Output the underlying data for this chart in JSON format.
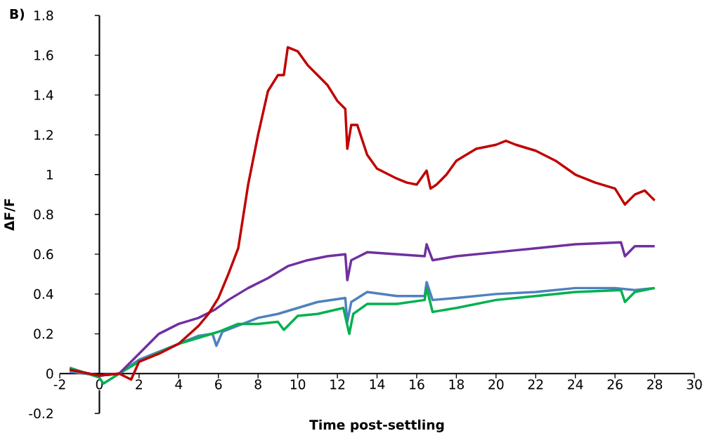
{
  "chart_data": {
    "type": "line",
    "xlabel": "Time post-settling",
    "ylabel": "ΔF/F",
    "annotations": [
      "B)"
    ],
    "xlim": [
      -2,
      30
    ],
    "xticks": [
      -2,
      0,
      2,
      4,
      6,
      8,
      10,
      12,
      14,
      16,
      18,
      20,
      22,
      24,
      26,
      28,
      30
    ],
    "ylim": [
      -0.2,
      1.8
    ],
    "yticks": [
      -0.2,
      0,
      0.2,
      0.4,
      0.6,
      0.8,
      1,
      1.2,
      1.4,
      1.6,
      1.8
    ],
    "series": [
      {
        "color": "#4f81bd",
        "x": [
          -1.5,
          0,
          1,
          2,
          4,
          5,
          5.7,
          5.9,
          6.2,
          8,
          9,
          10,
          11,
          12.4,
          12.5,
          12.7,
          13.5,
          15,
          16.4,
          16.5,
          16.8,
          18,
          20,
          22,
          24,
          26,
          27,
          28
        ],
        "values": [
          0.01,
          -0.01,
          0,
          0.07,
          0.15,
          0.19,
          0.2,
          0.14,
          0.21,
          0.28,
          0.3,
          0.33,
          0.36,
          0.38,
          0.26,
          0.36,
          0.41,
          0.39,
          0.39,
          0.46,
          0.37,
          0.38,
          0.4,
          0.41,
          0.43,
          0.43,
          0.42,
          0.43
        ]
      },
      {
        "color": "#00b050",
        "x": [
          -1.5,
          0,
          0.2,
          1,
          2,
          4,
          5,
          6,
          7,
          8,
          9,
          9.3,
          10,
          11,
          12.3,
          12.6,
          12.8,
          13.5,
          15,
          16.4,
          16.5,
          16.8,
          18,
          20,
          22,
          24,
          26.3,
          26.5,
          27,
          28
        ],
        "values": [
          0.03,
          -0.02,
          -0.05,
          0,
          0.06,
          0.15,
          0.18,
          0.21,
          0.25,
          0.25,
          0.26,
          0.22,
          0.29,
          0.3,
          0.33,
          0.2,
          0.3,
          0.35,
          0.35,
          0.37,
          0.43,
          0.31,
          0.33,
          0.37,
          0.39,
          0.41,
          0.42,
          0.36,
          0.41,
          0.43
        ]
      },
      {
        "color": "#7030a0",
        "x": [
          -1.5,
          0,
          1,
          2,
          3,
          4,
          5,
          5.8,
          6.5,
          7.5,
          8.5,
          9.5,
          10.5,
          11.5,
          12.4,
          12.5,
          12.7,
          13.5,
          15,
          16.4,
          16.5,
          16.8,
          18,
          20,
          22,
          24,
          26.3,
          26.5,
          27,
          28
        ],
        "values": [
          0.02,
          -0.01,
          0,
          0.1,
          0.2,
          0.25,
          0.28,
          0.32,
          0.37,
          0.43,
          0.48,
          0.54,
          0.57,
          0.59,
          0.6,
          0.47,
          0.57,
          0.61,
          0.6,
          0.59,
          0.65,
          0.57,
          0.59,
          0.61,
          0.63,
          0.65,
          0.66,
          0.59,
          0.64,
          0.64
        ]
      },
      {
        "color": "#c00000",
        "x": [
          -1.5,
          0,
          1,
          1.6,
          2,
          3,
          4,
          5,
          5.5,
          6,
          6.5,
          7,
          7.5,
          8,
          8.5,
          9,
          9.3,
          9.5,
          10,
          10.5,
          11,
          11.5,
          12,
          12.4,
          12.5,
          12.7,
          13,
          13.5,
          14,
          15,
          15.5,
          16,
          16.5,
          16.7,
          17,
          17.5,
          18,
          19,
          20,
          20.5,
          21,
          22,
          23,
          24,
          25,
          26,
          26.5,
          27,
          27.5,
          28
        ],
        "values": [
          0.02,
          -0.01,
          0,
          -0.03,
          0.06,
          0.1,
          0.15,
          0.24,
          0.3,
          0.38,
          0.5,
          0.63,
          0.95,
          1.2,
          1.42,
          1.5,
          1.5,
          1.64,
          1.62,
          1.55,
          1.5,
          1.45,
          1.37,
          1.33,
          1.13,
          1.25,
          1.25,
          1.1,
          1.03,
          0.98,
          0.96,
          0.95,
          1.02,
          0.93,
          0.95,
          1.0,
          1.07,
          1.13,
          1.15,
          1.17,
          1.15,
          1.12,
          1.07,
          1.0,
          0.96,
          0.93,
          0.85,
          0.9,
          0.92,
          0.87
        ]
      }
    ]
  }
}
